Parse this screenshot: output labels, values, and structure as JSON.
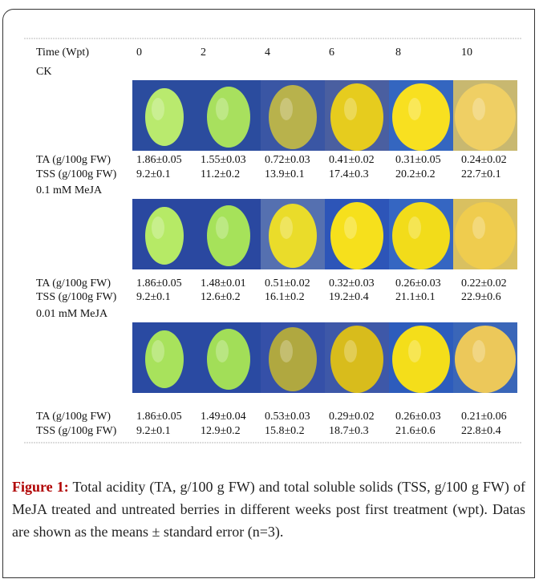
{
  "figure": {
    "header": {
      "label": "Time (Wpt)",
      "times": [
        0,
        2,
        4,
        6,
        8,
        10
      ]
    },
    "groups": [
      {
        "name": "CK",
        "ta_label": "TA (g/100g FW)",
        "ta": [
          "1.86±0.05",
          "1.55±0.03",
          "0.72±0.03",
          "0.41±0.02",
          "0.31±0.05",
          "0.24±0.02"
        ],
        "tss_label": "TSS (g/100g FW)",
        "tss": [
          "9.2±0.1",
          "11.2±0.2",
          "13.9±0.1",
          "17.4±0.3",
          "20.2±0.2",
          "22.7±0.1"
        ]
      },
      {
        "name": "0.1 mM MeJA",
        "ta_label": "TA (g/100g FW)",
        "ta": [
          "1.86±0.05",
          "1.48±0.01",
          "0.51±0.02",
          "0.32±0.03",
          "0.26±0.03",
          "0.22±0.02"
        ],
        "tss_label": "TSS (g/100g FW)",
        "tss": [
          "9.2±0.1",
          "12.6±0.2",
          "16.1±0.2",
          "19.2±0.4",
          "21.1±0.1",
          "22.9±0.6"
        ]
      },
      {
        "name": "0.01 mM MeJA",
        "ta_label": "TA (g/100g FW)",
        "ta": [
          "1.86±0.05",
          "1.49±0.04",
          "0.53±0.03",
          "0.29±0.02",
          "0.26±0.03",
          "0.21±0.06"
        ],
        "tss_label": "TSS (g/100g FW)",
        "tss": [
          "9.2±0.1",
          "12.9±0.2",
          "15.8±0.2",
          "18.7±0.3",
          "21.6±0.6",
          "22.8±0.4"
        ]
      }
    ]
  },
  "caption": {
    "label": "Figure 1:",
    "text": "Total acidity (TA, g/100 g FW) and total soluble solids (TSS, g/100 g FW) of MeJA treated and untreated berries in different weeks post first treatment (wpt). Datas are shown as the means ± standard error (n=3)."
  }
}
